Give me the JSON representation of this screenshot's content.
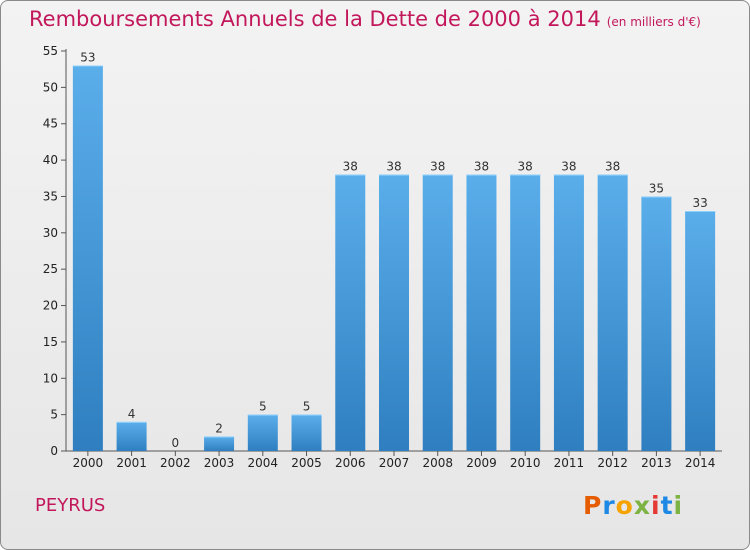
{
  "header": {
    "title": "Remboursements Annuels de la Dette de 2000 à 2014",
    "subtitle": "(en milliers d'€)"
  },
  "footer": {
    "commune": "PEYRUS",
    "logo_text": "Proxiti"
  },
  "colors": {
    "title": "#c2185b",
    "bar_top": "#5aaeea",
    "bar_bottom": "#2f7fc0"
  },
  "chart_data": {
    "type": "bar",
    "title": "Remboursements Annuels de la Dette de 2000 à 2014",
    "subtitle": "(en milliers d'€)",
    "categories": [
      "2000",
      "2001",
      "2002",
      "2003",
      "2004",
      "2005",
      "2006",
      "2007",
      "2008",
      "2009",
      "2010",
      "2011",
      "2012",
      "2013",
      "2014"
    ],
    "values": [
      53,
      4,
      0,
      2,
      5,
      5,
      38,
      38,
      38,
      38,
      38,
      38,
      38,
      35,
      33
    ],
    "ylim": [
      0,
      55
    ],
    "yticks": [
      0,
      5,
      10,
      15,
      20,
      25,
      30,
      35,
      40,
      45,
      50,
      55
    ],
    "grid": false,
    "data_labels": true
  }
}
